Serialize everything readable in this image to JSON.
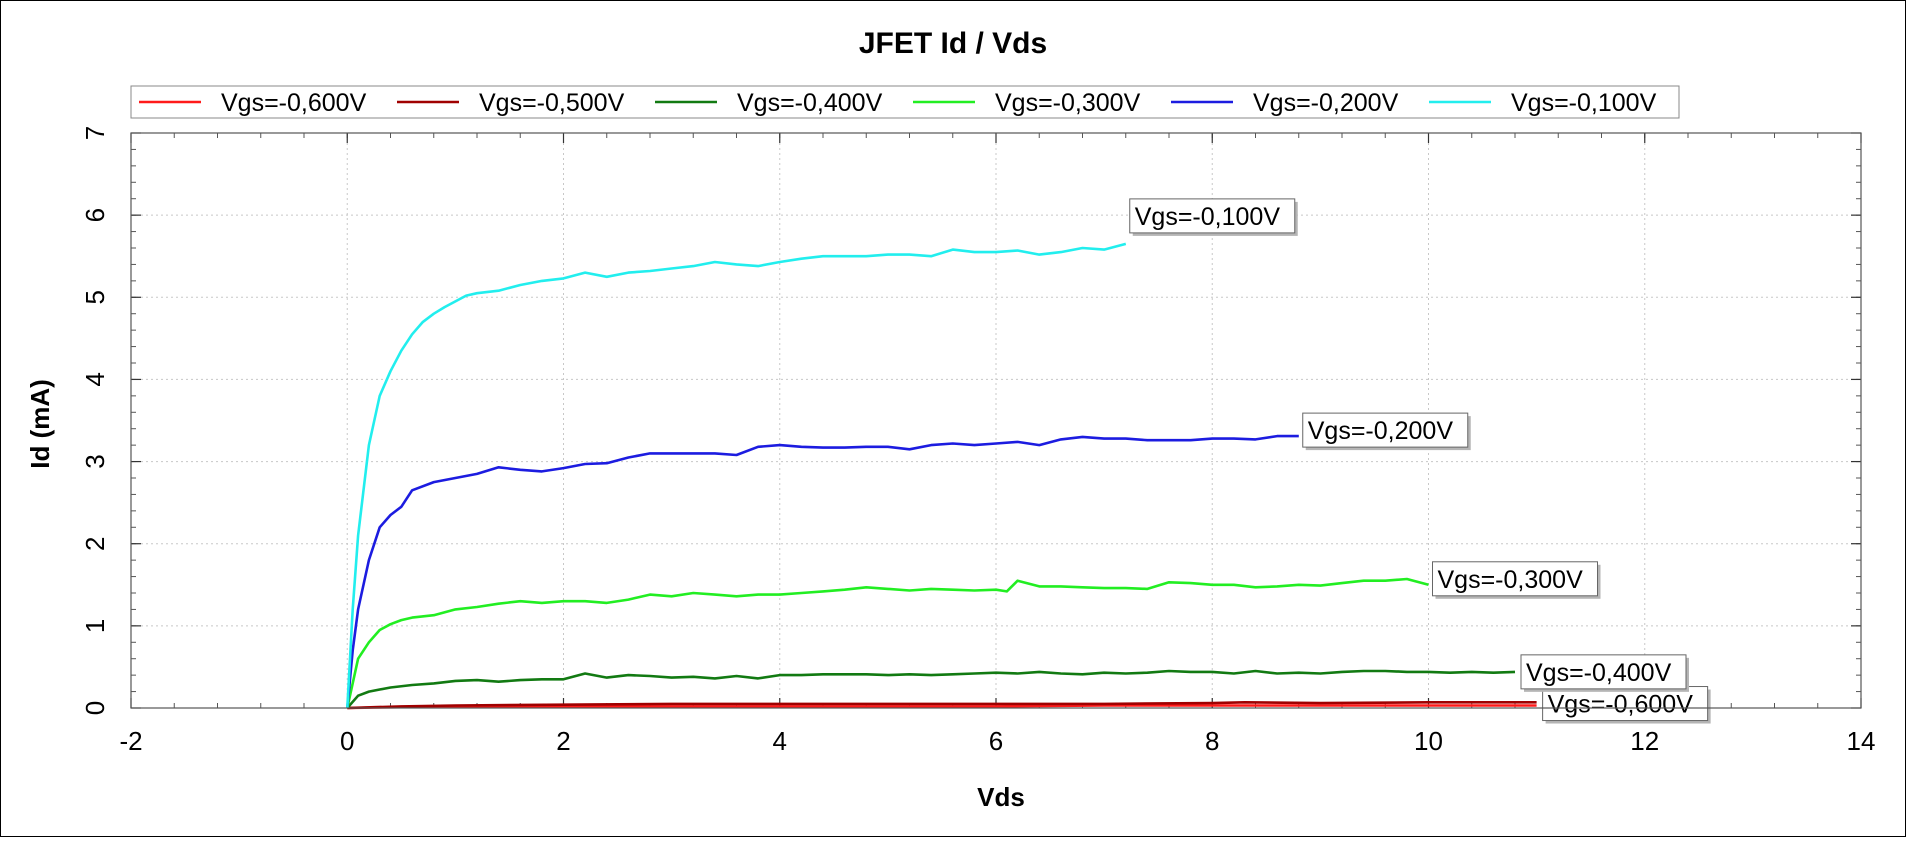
{
  "chart_data": {
    "type": "line",
    "title": "JFET Id / Vds",
    "xlabel": "Vds",
    "ylabel": "Id (mA)",
    "xlim": [
      -2,
      14
    ],
    "ylim": [
      0,
      7
    ],
    "xticks": [
      "-2",
      "0",
      "2",
      "4",
      "6",
      "8",
      "10",
      "12",
      "14"
    ],
    "yticks": [
      "0",
      "1",
      "2",
      "3",
      "4",
      "5",
      "6",
      "7"
    ],
    "grid": true,
    "legend_position": "top",
    "series": [
      {
        "name": "Vgs=-0,600V",
        "color": "#ff1a1a",
        "label": "Vgs=-0,600V",
        "show_label": true,
        "x": [
          0,
          0.5,
          1,
          2,
          3,
          4,
          5,
          6,
          7,
          8,
          9,
          10,
          11
        ],
        "y": [
          0,
          0.01,
          0.01,
          0.02,
          0.02,
          0.02,
          0.02,
          0.02,
          0.03,
          0.03,
          0.03,
          0.03,
          0.03
        ]
      },
      {
        "name": "Vgs=-0,500V",
        "color": "#a00000",
        "label": "Vgs=-0,500V",
        "show_label": false,
        "x": [
          0,
          0.5,
          1,
          2,
          3,
          4,
          5,
          6,
          7,
          8,
          8.3,
          9,
          10,
          11
        ],
        "y": [
          0,
          0.02,
          0.03,
          0.04,
          0.05,
          0.05,
          0.05,
          0.05,
          0.05,
          0.06,
          0.07,
          0.06,
          0.07,
          0.07
        ]
      },
      {
        "name": "Vgs=-0,400V",
        "color": "#127a12",
        "label": "Vgs=-0,400V",
        "show_label": true,
        "x": [
          0,
          0.1,
          0.2,
          0.4,
          0.6,
          0.8,
          1.0,
          1.2,
          1.4,
          1.6,
          1.8,
          2.0,
          2.2,
          2.4,
          2.6,
          2.8,
          3.0,
          3.2,
          3.4,
          3.6,
          3.8,
          4.0,
          4.2,
          4.4,
          4.6,
          4.8,
          5.0,
          5.2,
          5.4,
          5.6,
          5.8,
          6.0,
          6.2,
          6.4,
          6.6,
          6.8,
          7.0,
          7.2,
          7.4,
          7.6,
          7.8,
          8.0,
          8.2,
          8.4,
          8.6,
          8.8,
          9.0,
          9.2,
          9.4,
          9.6,
          9.8,
          10.0,
          10.2,
          10.4,
          10.6,
          10.8
        ],
        "y": [
          0,
          0.15,
          0.2,
          0.25,
          0.28,
          0.3,
          0.33,
          0.34,
          0.32,
          0.34,
          0.35,
          0.35,
          0.42,
          0.37,
          0.4,
          0.39,
          0.37,
          0.38,
          0.36,
          0.39,
          0.36,
          0.4,
          0.4,
          0.41,
          0.41,
          0.41,
          0.4,
          0.41,
          0.4,
          0.41,
          0.42,
          0.43,
          0.42,
          0.44,
          0.42,
          0.41,
          0.43,
          0.42,
          0.43,
          0.45,
          0.44,
          0.44,
          0.42,
          0.45,
          0.42,
          0.43,
          0.42,
          0.44,
          0.45,
          0.45,
          0.44,
          0.44,
          0.43,
          0.44,
          0.43,
          0.44
        ]
      },
      {
        "name": "Vgs=-0,300V",
        "color": "#22ee22",
        "label": "Vgs=-0,300V",
        "show_label": true,
        "x": [
          0,
          0.1,
          0.2,
          0.3,
          0.4,
          0.5,
          0.6,
          0.8,
          1.0,
          1.2,
          1.4,
          1.6,
          1.8,
          2.0,
          2.2,
          2.4,
          2.6,
          2.8,
          3.0,
          3.2,
          3.4,
          3.6,
          3.8,
          4.0,
          4.2,
          4.4,
          4.6,
          4.8,
          5.0,
          5.2,
          5.4,
          5.6,
          5.8,
          6.0,
          6.1,
          6.2,
          6.4,
          6.6,
          6.8,
          7.0,
          7.2,
          7.4,
          7.6,
          7.8,
          8.0,
          8.2,
          8.4,
          8.6,
          8.8,
          9.0,
          9.2,
          9.4,
          9.6,
          9.8,
          10.0
        ],
        "y": [
          0,
          0.6,
          0.8,
          0.95,
          1.02,
          1.07,
          1.1,
          1.13,
          1.2,
          1.23,
          1.27,
          1.3,
          1.28,
          1.3,
          1.3,
          1.28,
          1.32,
          1.38,
          1.36,
          1.4,
          1.38,
          1.36,
          1.38,
          1.38,
          1.4,
          1.42,
          1.44,
          1.47,
          1.45,
          1.43,
          1.45,
          1.44,
          1.43,
          1.44,
          1.42,
          1.55,
          1.48,
          1.48,
          1.47,
          1.46,
          1.46,
          1.45,
          1.53,
          1.52,
          1.5,
          1.5,
          1.47,
          1.48,
          1.5,
          1.49,
          1.52,
          1.55,
          1.55,
          1.57,
          1.5
        ]
      },
      {
        "name": "Vgs=-0,200V",
        "color": "#1c1ce0",
        "label": "Vgs=-0,200V",
        "show_label": true,
        "x": [
          0,
          0.05,
          0.1,
          0.2,
          0.3,
          0.4,
          0.5,
          0.6,
          0.8,
          1.0,
          1.2,
          1.4,
          1.6,
          1.8,
          2.0,
          2.2,
          2.4,
          2.6,
          2.8,
          3.0,
          3.2,
          3.4,
          3.6,
          3.8,
          4.0,
          4.2,
          4.4,
          4.6,
          4.8,
          5.0,
          5.2,
          5.4,
          5.6,
          5.8,
          6.0,
          6.2,
          6.4,
          6.6,
          6.8,
          7.0,
          7.2,
          7.4,
          7.6,
          7.8,
          8.0,
          8.2,
          8.4,
          8.6,
          8.8
        ],
        "y": [
          0,
          0.7,
          1.2,
          1.8,
          2.2,
          2.35,
          2.45,
          2.65,
          2.75,
          2.8,
          2.85,
          2.93,
          2.9,
          2.88,
          2.92,
          2.97,
          2.98,
          3.05,
          3.1,
          3.1,
          3.1,
          3.1,
          3.08,
          3.18,
          3.2,
          3.18,
          3.17,
          3.17,
          3.18,
          3.18,
          3.15,
          3.2,
          3.22,
          3.2,
          3.22,
          3.24,
          3.2,
          3.27,
          3.3,
          3.28,
          3.28,
          3.26,
          3.26,
          3.26,
          3.28,
          3.28,
          3.27,
          3.31,
          3.31
        ]
      },
      {
        "name": "Vgs=-0,100V",
        "color": "#22eeee",
        "label": "Vgs=-0,100V",
        "show_label": true,
        "x": [
          0,
          0.05,
          0.1,
          0.2,
          0.3,
          0.4,
          0.5,
          0.6,
          0.7,
          0.8,
          0.9,
          1.0,
          1.1,
          1.2,
          1.4,
          1.6,
          1.8,
          2.0,
          2.2,
          2.4,
          2.6,
          2.8,
          3.0,
          3.2,
          3.4,
          3.6,
          3.8,
          4.0,
          4.2,
          4.4,
          4.6,
          4.8,
          5.0,
          5.2,
          5.4,
          5.6,
          5.8,
          6.0,
          6.2,
          6.4,
          6.6,
          6.8,
          7.0,
          7.2
        ],
        "y": [
          0,
          1.2,
          2.1,
          3.2,
          3.8,
          4.1,
          4.35,
          4.55,
          4.7,
          4.8,
          4.88,
          4.95,
          5.02,
          5.05,
          5.08,
          5.15,
          5.2,
          5.23,
          5.3,
          5.25,
          5.3,
          5.32,
          5.35,
          5.38,
          5.43,
          5.4,
          5.38,
          5.43,
          5.47,
          5.5,
          5.5,
          5.5,
          5.52,
          5.52,
          5.5,
          5.58,
          5.55,
          5.55,
          5.57,
          5.52,
          5.55,
          5.6,
          5.58,
          5.65
        ]
      }
    ]
  }
}
